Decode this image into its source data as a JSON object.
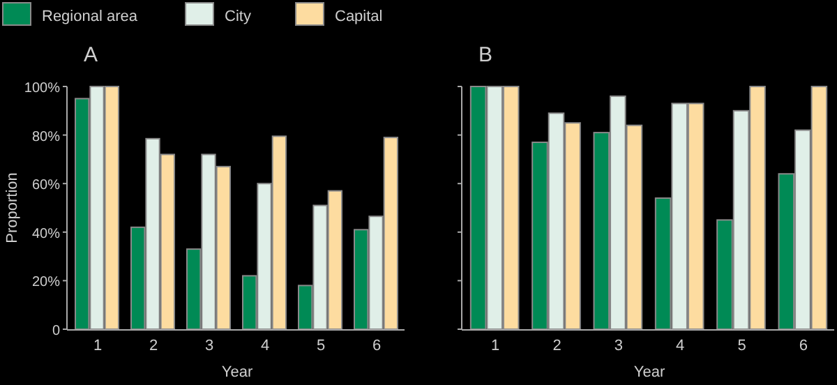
{
  "chart_data": [
    {
      "type": "bar",
      "title": "A",
      "xlabel": "Year",
      "ylabel": "Proportion",
      "categories": [
        "1",
        "2",
        "3",
        "4",
        "5",
        "6"
      ],
      "legend": "top left",
      "series": [
        {
          "name": "Regional area",
          "color": "#008a55",
          "values": [
            95,
            42,
            33,
            22,
            18,
            41
          ]
        },
        {
          "name": "City",
          "color": "#e0efe8",
          "values": [
            100,
            78.5,
            72,
            60,
            51,
            46.5
          ]
        },
        {
          "name": "Capital",
          "color": "#fddca0",
          "values": [
            100,
            72,
            67,
            79.5,
            57,
            79
          ]
        }
      ],
      "ylim": [
        0,
        100
      ],
      "yticks": [
        0,
        {
          "value": 20,
          "label": "20%"
        },
        {
          "value": 40,
          "label": "40%"
        },
        {
          "value": 60,
          "label": "60%"
        },
        {
          "value": 80,
          "label": "80%"
        },
        {
          "value": 100,
          "label": "100%"
        }
      ]
    },
    {
      "type": "bar",
      "title": "B",
      "xlabel": "Year",
      "categories": [
        "1",
        "2",
        "3",
        "4",
        "5",
        "6"
      ],
      "series": [
        {
          "color": "#008a55",
          "values": [
            100,
            77,
            81,
            54,
            45,
            64
          ]
        },
        {
          "color": "#e0efe8",
          "values": [
            100,
            89,
            96,
            93,
            90,
            82
          ]
        },
        {
          "color": "#fddca0",
          "values": [
            100,
            85,
            84,
            93,
            100,
            100
          ]
        }
      ],
      "ylim": [
        0,
        100
      ],
      "yticks": [
        {
          "value": 0,
          "label": null
        },
        {
          "value": 20,
          "label": null
        },
        {
          "value": 40,
          "label": null
        },
        {
          "value": 60,
          "label": null
        },
        {
          "value": 80,
          "label": null
        },
        {
          "value": 100,
          "label": null
        }
      ],
      "tick_labels": "x"
    }
  ]
}
